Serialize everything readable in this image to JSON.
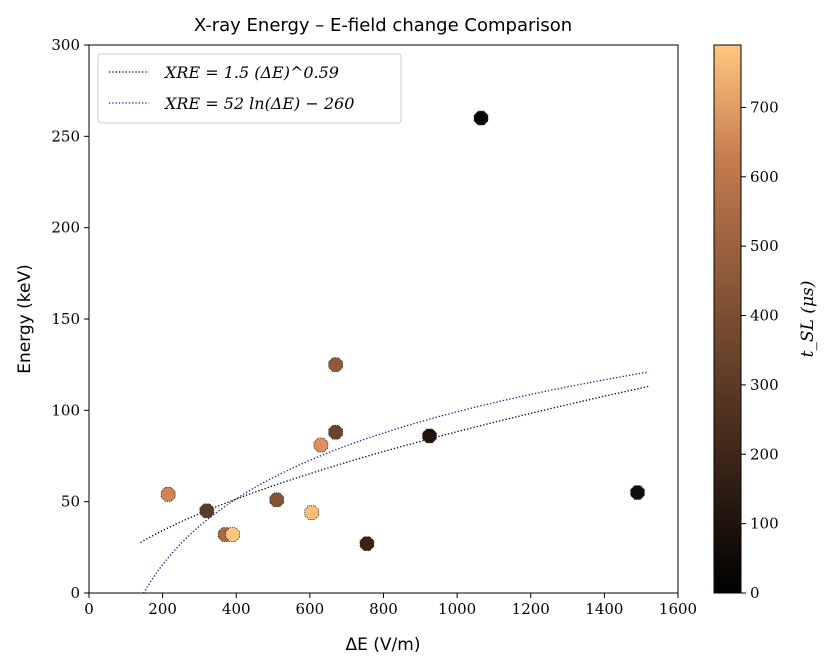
{
  "chart_data": {
    "type": "scatter",
    "title": "X-ray Energy – E-field change Comparison",
    "xlabel": "ΔE (V/m)",
    "ylabel": "Energy (keV)",
    "xlim": [
      0,
      1600
    ],
    "ylim": [
      0,
      300
    ],
    "xticks": [
      "0",
      "200",
      "400",
      "600",
      "800",
      "1000",
      "1200",
      "1400",
      "1600"
    ],
    "yticks": [
      "0",
      "50",
      "100",
      "150",
      "200",
      "250",
      "300"
    ],
    "colorbar": {
      "label": "t_SL (μs)",
      "range": [
        0,
        790
      ],
      "ticks": [
        "0",
        "100",
        "200",
        "300",
        "400",
        "500",
        "600",
        "700"
      ]
    },
    "legend": {
      "placement": "top-left",
      "entries": [
        {
          "label": "XRE = 1.5 (ΔE)^0.59",
          "color": "#000000"
        },
        {
          "label": "XRE = 52 ln(ΔE) − 260",
          "color": "#1a1a8c"
        }
      ]
    },
    "points": [
      {
        "x": 215,
        "y": 54,
        "t": 520
      },
      {
        "x": 320,
        "y": 45,
        "t": 230
      },
      {
        "x": 370,
        "y": 32,
        "t": 420
      },
      {
        "x": 390,
        "y": 32,
        "t": 780
      },
      {
        "x": 510,
        "y": 51,
        "t": 330
      },
      {
        "x": 605,
        "y": 44,
        "t": 750
      },
      {
        "x": 630,
        "y": 81,
        "t": 560
      },
      {
        "x": 670,
        "y": 125,
        "t": 360
      },
      {
        "x": 670,
        "y": 88,
        "t": 270
      },
      {
        "x": 755,
        "y": 27,
        "t": 140
      },
      {
        "x": 925,
        "y": 86,
        "t": 80
      },
      {
        "x": 1065,
        "y": 260,
        "t": 10
      },
      {
        "x": 1490,
        "y": 55,
        "t": 50
      }
    ],
    "curves": [
      {
        "name": "power-fit",
        "formula": "1.5*x^0.59",
        "xrange": [
          140,
          1520
        ],
        "color": "#000000"
      },
      {
        "name": "log-fit",
        "formula": "52*ln(x)-260",
        "xrange": [
          148,
          1520
        ],
        "color": "#1a1a8c"
      }
    ]
  }
}
